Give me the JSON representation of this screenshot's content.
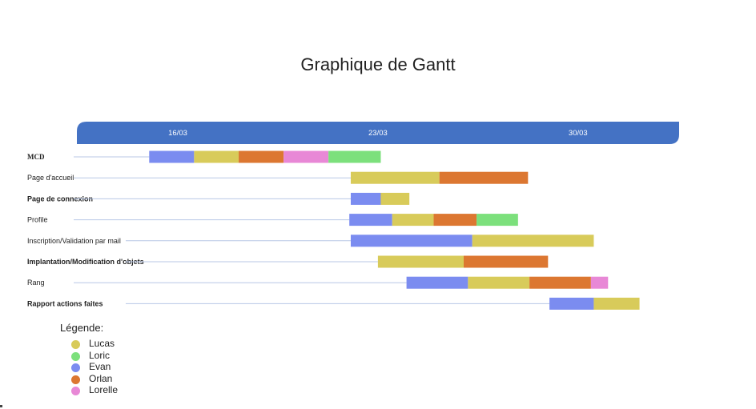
{
  "chart_data": {
    "type": "gantt",
    "title": "Graphique de Gantt",
    "x_ticks": [
      "16/03",
      "23/03",
      "30/03"
    ],
    "tasks": [
      {
        "label": "MCD",
        "style": "bold-serif",
        "segments": [
          {
            "person": "Evan",
            "start": 15.0,
            "end": 16.57
          },
          {
            "person": "Lucas",
            "start": 16.57,
            "end": 18.13
          },
          {
            "person": "Orlan",
            "start": 18.13,
            "end": 19.7
          },
          {
            "person": "Lorelle",
            "start": 19.7,
            "end": 21.27
          },
          {
            "person": "Loric",
            "start": 21.27,
            "end": 23.1
          }
        ]
      },
      {
        "label": "Page d'accueil",
        "style": "normal",
        "segments": [
          {
            "person": "Lucas",
            "start": 22.05,
            "end": 25.15
          },
          {
            "person": "Orlan",
            "start": 25.15,
            "end": 28.25
          }
        ]
      },
      {
        "label": "Page de connexion",
        "style": "bold",
        "segments": [
          {
            "person": "Evan",
            "start": 22.05,
            "end": 23.1
          },
          {
            "person": "Lucas",
            "start": 23.1,
            "end": 24.1
          }
        ]
      },
      {
        "label": "Profile",
        "style": "normal",
        "segments": [
          {
            "person": "Evan",
            "start": 22.0,
            "end": 23.5
          },
          {
            "person": "Lucas",
            "start": 23.5,
            "end": 24.95
          },
          {
            "person": "Orlan",
            "start": 24.95,
            "end": 26.45
          },
          {
            "person": "Loric",
            "start": 26.45,
            "end": 27.9
          }
        ]
      },
      {
        "label": "Inscription/Validation par mail",
        "style": "normal",
        "segments": [
          {
            "person": "Evan",
            "start": 22.05,
            "end": 26.3
          },
          {
            "person": "Lucas",
            "start": 26.3,
            "end": 30.55
          }
        ]
      },
      {
        "label": "Implantation/Modification d'objets",
        "style": "bold",
        "segments": [
          {
            "person": "Lucas",
            "start": 23.0,
            "end": 26.0
          },
          {
            "person": "Orlan",
            "start": 26.0,
            "end": 28.95
          }
        ]
      },
      {
        "label": "Rang",
        "style": "normal",
        "segments": [
          {
            "person": "Evan",
            "start": 24.0,
            "end": 26.15
          },
          {
            "person": "Lucas",
            "start": 26.15,
            "end": 28.3
          },
          {
            "person": "Orlan",
            "start": 28.3,
            "end": 30.45
          },
          {
            "person": "Lorelle",
            "start": 30.45,
            "end": 31.05
          }
        ]
      },
      {
        "label": "Rapport actions faites",
        "style": "bold",
        "segments": [
          {
            "person": "Evan",
            "start": 29.0,
            "end": 30.55
          },
          {
            "person": "Lucas",
            "start": 30.55,
            "end": 32.15
          }
        ]
      }
    ],
    "legend_title": "Légende:",
    "legend": [
      {
        "name": "Lucas",
        "color": "#d8cb5a"
      },
      {
        "name": "Loric",
        "color": "#7ce07c"
      },
      {
        "name": "Evan",
        "color": "#7b8cf0"
      },
      {
        "name": "Orlan",
        "color": "#dc7731"
      },
      {
        "name": "Lorelle",
        "color": "#e888d6"
      }
    ],
    "header_color": "#4472c4",
    "row_line_color": "#b8c7e6"
  }
}
